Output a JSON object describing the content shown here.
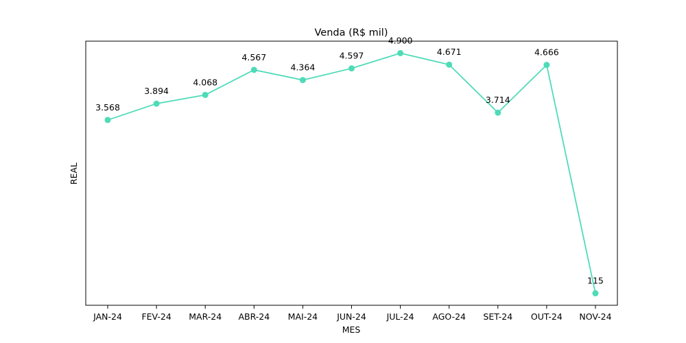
{
  "chart_data": {
    "type": "line",
    "title": "Venda (R$ mil)",
    "xlabel": "MES",
    "ylabel": "REAL",
    "categories": [
      "JAN-24",
      "FEV-24",
      "MAR-24",
      "ABR-24",
      "MAI-24",
      "JUN-24",
      "JUL-24",
      "AGO-24",
      "SET-24",
      "OUT-24",
      "NOV-24"
    ],
    "series": [
      {
        "values": [
          3568,
          3894,
          4068,
          4567,
          4364,
          4597,
          4900,
          4671,
          3714,
          4666,
          115
        ],
        "labels": [
          "3.568",
          "3.894",
          "4.068",
          "4.567",
          "4.364",
          "4.597",
          "4.900",
          "4.671",
          "3.714",
          "4.666",
          "115"
        ],
        "color": "#4fdbb8"
      }
    ],
    "ylim": [
      -124,
      5139
    ],
    "y_ticks_visible": false,
    "grid": false,
    "legend": "none",
    "marker": "circle"
  }
}
